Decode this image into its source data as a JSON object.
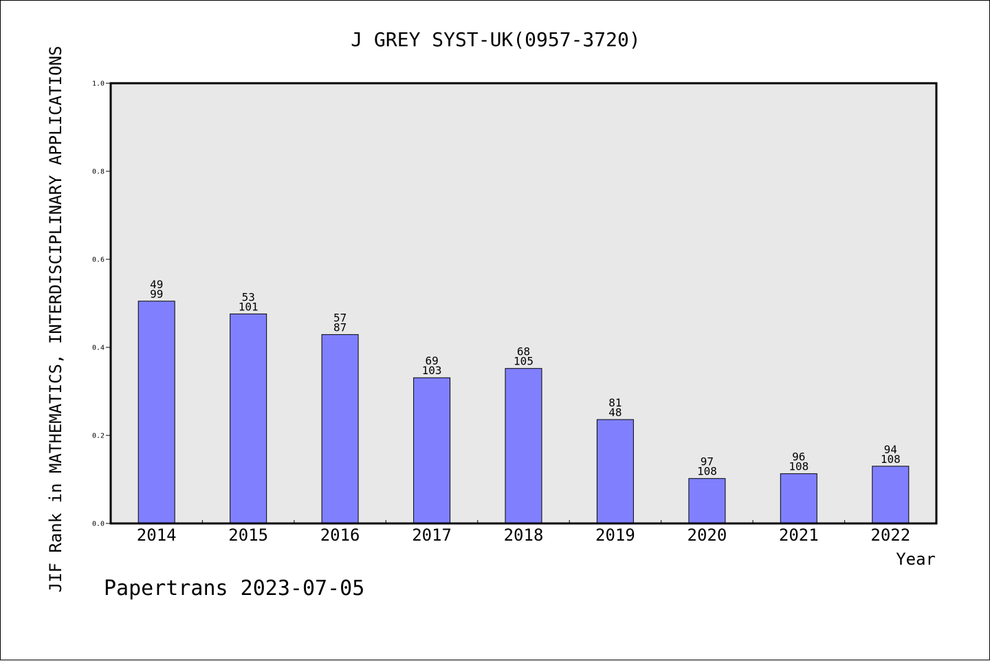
{
  "chart_data": {
    "type": "bar",
    "title": "J GREY SYST-UK(0957-3720)",
    "xlabel": "Year",
    "ylabel": "JIF Rank in MATHEMATICS, INTERDISCIPLINARY APPLICATIONS",
    "ylim": [
      0,
      1
    ],
    "yticks": [
      "0.0",
      "0.2",
      "0.4",
      "0.6",
      "0.8",
      "1.0"
    ],
    "grid": false,
    "categories": [
      "2014",
      "2015",
      "2016",
      "2017",
      "2018",
      "2019",
      "2020",
      "2021",
      "2022"
    ],
    "values": [
      0.505,
      0.476,
      0.429,
      0.331,
      0.352,
      0.236,
      0.102,
      0.113,
      0.13
    ],
    "labels_top": [
      "49",
      "53",
      "57",
      "69",
      "68",
      "81",
      "97",
      "96",
      "94"
    ],
    "labels_bottom": [
      "99",
      "101",
      "87",
      "103",
      "105",
      "48",
      "108",
      "108",
      "108"
    ],
    "colors": {
      "bar": "#8080ff",
      "plot_background": "#e8e8e8"
    }
  },
  "footer": "Papertrans 2023-07-05"
}
